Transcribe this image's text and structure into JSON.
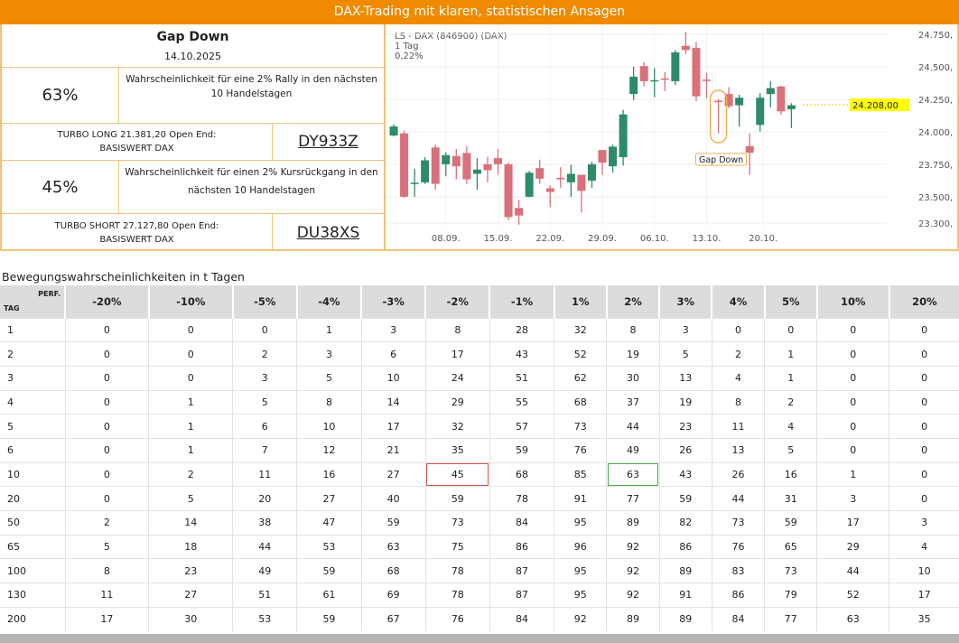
{
  "banner": "DAX-Trading mit klaren, statistischen Ansagen",
  "signal": {
    "title": "Gap Down",
    "date": "14.10.2025",
    "long_pct": "63%",
    "long_text": "Wahrscheinlichkeit für eine 2% Rally in den nächsten 10 Handelstagen",
    "long_product": "TURBO LONG 21.381,20 Open End:",
    "long_underlying": "BASISWERT DAX",
    "long_code": "DY933Z",
    "short_pct": "45%",
    "short_text": "Wahrscheinlichkeit für einen 2% Kursrückgang in den nächsten 10 Handelstagen",
    "short_product": "TURBO SHORT 27.127,80 Open End:",
    "short_underlying": "BASISWERT DAX",
    "short_code": "DU38XS"
  },
  "chart_data": {
    "type": "candlestick",
    "title": "LS - DAX (846900) (DAX)",
    "interval": "1 Tag",
    "change": "0,22%",
    "last_price": "24.208,00",
    "annotation": "Gap Down",
    "annotation_index": 31,
    "ylim": [
      23200,
      24800
    ],
    "yticks": [
      {
        "v": 24750,
        "l": "24.750,"
      },
      {
        "v": 24500,
        "l": "24.500,"
      },
      {
        "v": 24250,
        "l": "24.250,"
      },
      {
        "v": 24000,
        "l": "24.000,"
      },
      {
        "v": 23750,
        "l": "23.750,"
      },
      {
        "v": 23500,
        "l": "23.500,"
      },
      {
        "v": 23300,
        "l": "23.300,"
      }
    ],
    "xticks": [
      {
        "i": 5,
        "l": "08.09."
      },
      {
        "i": 10,
        "l": "15.09."
      },
      {
        "i": 15,
        "l": "22.09."
      },
      {
        "i": 20,
        "l": "29.09."
      },
      {
        "i": 25,
        "l": "06.10."
      },
      {
        "i": 30,
        "l": "13.10."
      },
      {
        "i": 35.3,
        "l": "20.10."
      }
    ],
    "colors": {
      "up": "#2e8b6a",
      "down": "#d9707a"
    },
    "ohlc": [
      [
        23973,
        24058,
        23966,
        24042
      ],
      [
        23989,
        24012,
        23493,
        23502
      ],
      [
        23600,
        23718,
        23502,
        23610
      ],
      [
        23613,
        23806,
        23601,
        23782
      ],
      [
        23880,
        23903,
        23555,
        23601
      ],
      [
        23752,
        23845,
        23659,
        23822
      ],
      [
        23815,
        23868,
        23636,
        23736
      ],
      [
        23838,
        23891,
        23601,
        23636
      ],
      [
        23678,
        23799,
        23555,
        23711
      ],
      [
        23752,
        23810,
        23613,
        23706
      ],
      [
        23799,
        23868,
        23671,
        23752
      ],
      [
        23752,
        23764,
        23323,
        23346
      ],
      [
        23416,
        23479,
        23288,
        23358
      ],
      [
        23502,
        23701,
        23497,
        23687
      ],
      [
        23722,
        23787,
        23601,
        23641
      ],
      [
        23567,
        23590,
        23423,
        23539
      ],
      [
        23648,
        23729,
        23571,
        23636
      ],
      [
        23613,
        23748,
        23502,
        23678
      ],
      [
        23671,
        23671,
        23381,
        23548
      ],
      [
        23625,
        23771,
        23571,
        23752
      ],
      [
        23861,
        23861,
        23671,
        23764
      ],
      [
        23736,
        23903,
        23687,
        23887
      ],
      [
        23806,
        24170,
        23741,
        24135
      ],
      [
        24291,
        24500,
        24244,
        24425
      ],
      [
        24506,
        24537,
        24351,
        24390
      ],
      [
        24395,
        24490,
        24267,
        24398
      ],
      [
        24411,
        24460,
        24314,
        24402
      ],
      [
        24390,
        24629,
        24360,
        24611
      ],
      [
        24662,
        24768,
        24599,
        24629
      ],
      [
        24645,
        24692,
        24235,
        24274
      ],
      [
        24402,
        24453,
        24258,
        24400
      ],
      [
        24240,
        24251,
        23989,
        24238
      ],
      [
        24291,
        24344,
        24182,
        24198
      ],
      [
        24205,
        24286,
        24042,
        24263
      ],
      [
        23891,
        23989,
        23671,
        23840
      ],
      [
        24054,
        24298,
        24003,
        24263
      ],
      [
        24291,
        24390,
        24189,
        24337
      ],
      [
        24349,
        24356,
        24135,
        24158
      ],
      [
        24175,
        24221,
        24030,
        24205
      ]
    ]
  },
  "table": {
    "title": "Bewegungswahrscheinlichkeiten in t Tagen",
    "corner_tag": "TAG",
    "corner_perf": "PERF.",
    "columns": [
      "-20%",
      "-10%",
      "-5%",
      "-4%",
      "-3%",
      "-2%",
      "-1%",
      "1%",
      "2%",
      "3%",
      "4%",
      "5%",
      "10%",
      "20%"
    ],
    "rows": [
      {
        "tag": "1",
        "v": [
          0,
          0,
          0,
          1,
          3,
          8,
          28,
          32,
          8,
          3,
          0,
          0,
          0,
          0
        ]
      },
      {
        "tag": "2",
        "v": [
          0,
          0,
          2,
          3,
          6,
          17,
          43,
          52,
          19,
          5,
          2,
          1,
          0,
          0
        ]
      },
      {
        "tag": "3",
        "v": [
          0,
          0,
          3,
          5,
          10,
          24,
          51,
          62,
          30,
          13,
          4,
          1,
          0,
          0
        ]
      },
      {
        "tag": "4",
        "v": [
          0,
          1,
          5,
          8,
          14,
          29,
          55,
          68,
          37,
          19,
          8,
          2,
          0,
          0
        ]
      },
      {
        "tag": "5",
        "v": [
          0,
          1,
          6,
          10,
          17,
          32,
          57,
          73,
          44,
          23,
          11,
          4,
          0,
          0
        ]
      },
      {
        "tag": "6",
        "v": [
          0,
          1,
          7,
          12,
          21,
          35,
          59,
          76,
          49,
          26,
          13,
          5,
          0,
          0
        ]
      },
      {
        "tag": "10",
        "v": [
          0,
          2,
          11,
          16,
          27,
          45,
          68,
          85,
          63,
          43,
          26,
          16,
          1,
          0
        ]
      },
      {
        "tag": "20",
        "v": [
          0,
          5,
          20,
          27,
          40,
          59,
          78,
          91,
          77,
          59,
          44,
          31,
          3,
          0
        ]
      },
      {
        "tag": "50",
        "v": [
          2,
          14,
          38,
          47,
          59,
          73,
          84,
          95,
          89,
          82,
          73,
          59,
          17,
          3
        ]
      },
      {
        "tag": "65",
        "v": [
          5,
          18,
          44,
          53,
          63,
          75,
          86,
          96,
          92,
          86,
          76,
          65,
          29,
          4
        ]
      },
      {
        "tag": "100",
        "v": [
          8,
          23,
          49,
          59,
          68,
          78,
          87,
          95,
          92,
          89,
          83,
          73,
          44,
          10
        ]
      },
      {
        "tag": "130",
        "v": [
          11,
          27,
          51,
          61,
          69,
          78,
          87,
          95,
          92,
          91,
          86,
          79,
          52,
          17
        ]
      },
      {
        "tag": "200",
        "v": [
          17,
          30,
          53,
          59,
          67,
          76,
          84,
          92,
          89,
          89,
          84,
          77,
          63,
          35
        ]
      }
    ],
    "highlight": {
      "row": "10",
      "red_col": "-2%",
      "green_col": "2%"
    }
  }
}
